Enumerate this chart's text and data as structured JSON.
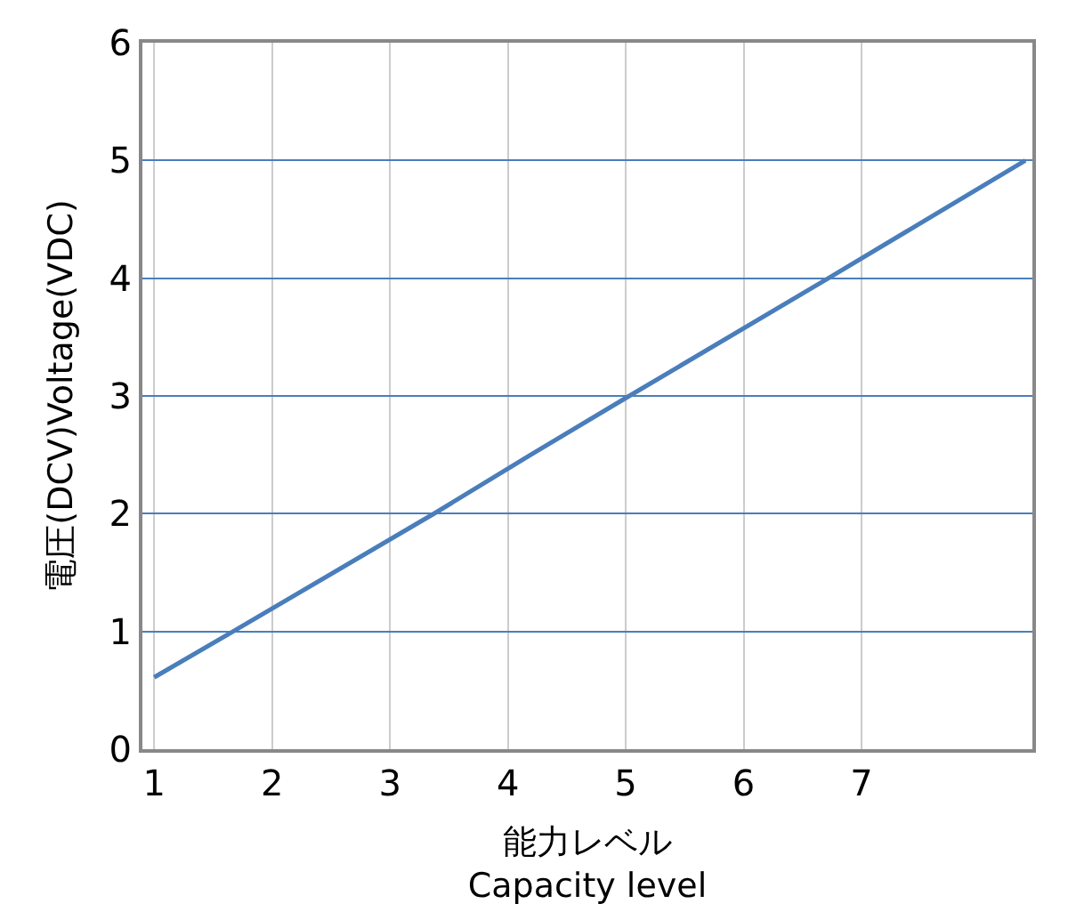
{
  "chart_data": {
    "type": "line",
    "x": [
      1,
      1.67,
      3.39,
      4.21,
      5.03,
      6.72,
      8.39
    ],
    "series": [
      {
        "color": "#4a7ebb",
        "values": [
          0.61,
          1.0,
          2.01,
          2.51,
          3.0,
          4.0,
          5.0
        ]
      }
    ],
    "xlim": [
      0.9,
      8.45
    ],
    "xticks": [
      1,
      2,
      3,
      4,
      5,
      6,
      7
    ],
    "ylim": [
      0,
      6
    ],
    "yticks": [
      0,
      1,
      2,
      3,
      4,
      5,
      6
    ],
    "xlabel": "能力レベル\nCapacity level",
    "ylabel": "電圧(DCV)Voltage(VDC)",
    "grid": true,
    "marker": "none",
    "line_style": "solid"
  }
}
